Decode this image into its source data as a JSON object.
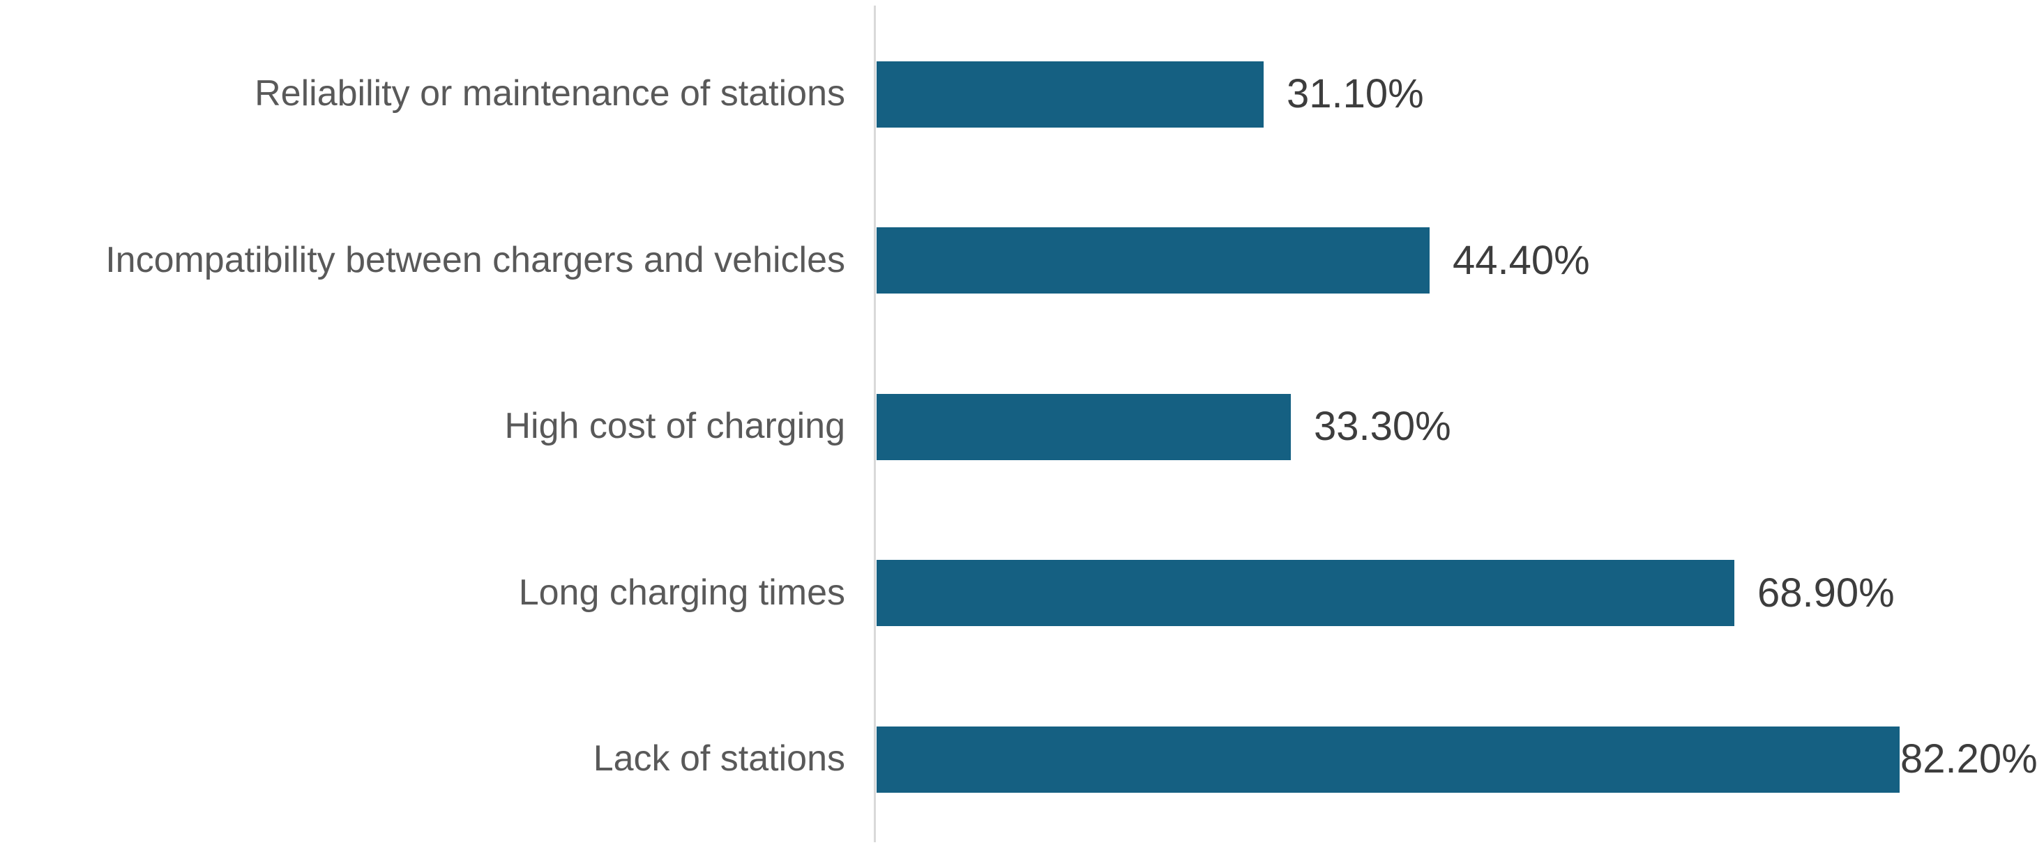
{
  "chart_data": {
    "type": "bar",
    "orientation": "horizontal",
    "title": "",
    "xlabel": "",
    "ylabel": "",
    "categories": [
      "Reliability or maintenance of stations",
      "Incompatibility between chargers and vehicles",
      "High cost of charging",
      "Long charging times",
      "Lack of stations"
    ],
    "values": [
      31.1,
      44.4,
      33.3,
      68.9,
      82.2
    ],
    "value_labels": [
      "31.10%",
      "44.40%",
      "33.30%",
      "68.90%",
      "82.20%"
    ],
    "value_label_position": "outside-end",
    "xlim": [
      0,
      93
    ],
    "grid": "off",
    "legend": "none",
    "colors": {
      "bar_fill": "#156082",
      "axis_line": "#D9D9D9",
      "category_text": "#595959",
      "value_text": "#3D3D3D",
      "background": "#FFFFFF"
    }
  }
}
